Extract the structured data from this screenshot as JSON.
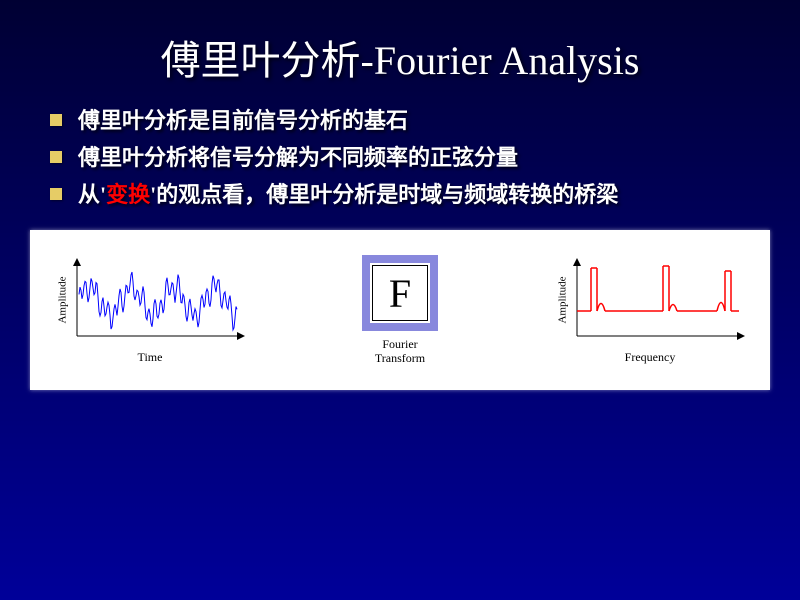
{
  "title": "傅里叶分析-Fourier Analysis",
  "bullets": [
    {
      "pre": "傅里叶分析是目前信号分析的基石",
      "hl": "",
      "post": ""
    },
    {
      "pre": "傅里叶分析将信号分解为不同频率的正弦分量",
      "hl": "",
      "post": ""
    },
    {
      "pre": "从'",
      "hl": "变换",
      "post": "'的观点看，傅里叶分析是时域与频域转换的桥梁"
    }
  ],
  "diagram": {
    "left": {
      "ylabel": "Amplitude",
      "xlabel": "Time",
      "color": "#0000ff"
    },
    "center": {
      "letter": "F",
      "label1": "Fourier",
      "label2": "Transform",
      "border_color": "#8888dd"
    },
    "right": {
      "ylabel": "Amplitude",
      "xlabel": "Frequency",
      "color": "#ff0000"
    }
  },
  "colors": {
    "bullet_marker": "#e6cc66",
    "highlight": "#ff0000",
    "text": "#ffffff"
  }
}
